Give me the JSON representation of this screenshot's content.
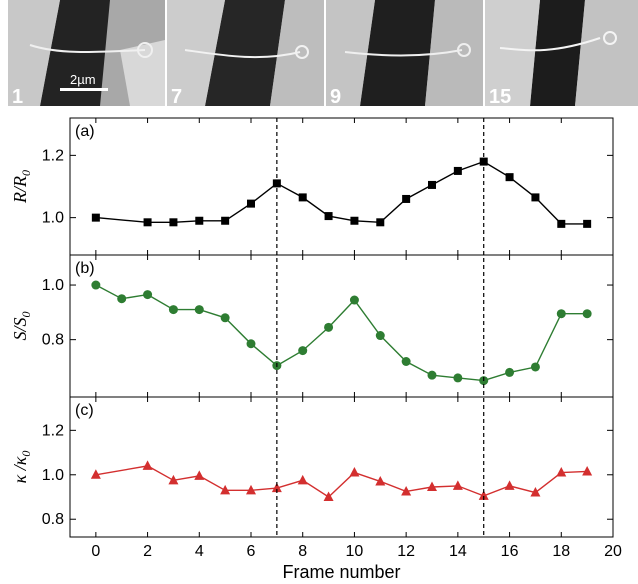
{
  "micrographs": [
    {
      "label": "1"
    },
    {
      "label": "7"
    },
    {
      "label": "9"
    },
    {
      "label": "15"
    }
  ],
  "scalebar": {
    "label": "2µm"
  },
  "chart_data": [
    {
      "type": "line",
      "panel_label": "(a)",
      "ylabel": {
        "main": "R/R",
        "sub": "0"
      },
      "x": [
        0,
        2,
        3,
        4,
        5,
        6,
        7,
        8,
        9,
        10,
        11,
        12,
        13,
        14,
        15,
        16,
        17,
        18,
        19
      ],
      "series": [
        {
          "values": [
            1.0,
            0.985,
            0.985,
            0.99,
            0.99,
            1.045,
            1.11,
            1.065,
            1.005,
            0.99,
            0.985,
            1.06,
            1.105,
            1.15,
            1.18,
            1.13,
            1.065,
            0.98,
            0.98
          ],
          "color": "#000000",
          "marker": "square"
        }
      ],
      "ylim": [
        0.88,
        1.32
      ],
      "yticks": [
        "1.0",
        "1.2"
      ]
    },
    {
      "type": "line",
      "panel_label": "(b)",
      "ylabel": {
        "main": "S/S",
        "sub": "0"
      },
      "x": [
        0,
        1,
        2,
        3,
        4,
        5,
        6,
        7,
        8,
        9,
        10,
        11,
        12,
        13,
        14,
        15,
        16,
        17,
        18,
        19
      ],
      "series": [
        {
          "values": [
            1.0,
            0.95,
            0.965,
            0.91,
            0.91,
            0.88,
            0.785,
            0.705,
            0.76,
            0.845,
            0.945,
            0.815,
            0.72,
            0.67,
            0.66,
            0.65,
            0.68,
            0.7,
            0.895,
            0.895
          ],
          "color": "#2e7d32",
          "marker": "circle"
        }
      ],
      "ylim": [
        0.59,
        1.11
      ],
      "yticks": [
        "0.8",
        "1.0"
      ]
    },
    {
      "type": "line",
      "panel_label": "(c)",
      "ylabel": {
        "main": "κ /κ",
        "sub": "0"
      },
      "x": [
        0,
        2,
        3,
        4,
        5,
        6,
        7,
        8,
        9,
        10,
        11,
        12,
        13,
        14,
        15,
        16,
        17,
        18,
        19
      ],
      "series": [
        {
          "values": [
            1.0,
            1.04,
            0.975,
            0.995,
            0.93,
            0.93,
            0.94,
            0.975,
            0.9,
            1.01,
            0.97,
            0.925,
            0.945,
            0.95,
            0.905,
            0.95,
            0.92,
            1.01,
            1.015
          ],
          "color": "#d32f2f",
          "marker": "triangle"
        }
      ],
      "ylim": [
        0.72,
        1.35
      ],
      "yticks": [
        "0.8",
        "1.0",
        "1.2"
      ]
    }
  ],
  "shared_x": {
    "xlabel": "Frame number",
    "xlim": [
      -1,
      20
    ],
    "xticks": [
      "0",
      "2",
      "4",
      "6",
      "8",
      "10",
      "12",
      "14",
      "16",
      "18",
      "20"
    ]
  },
  "markers": {
    "dashed_frames": [
      7,
      15
    ]
  }
}
